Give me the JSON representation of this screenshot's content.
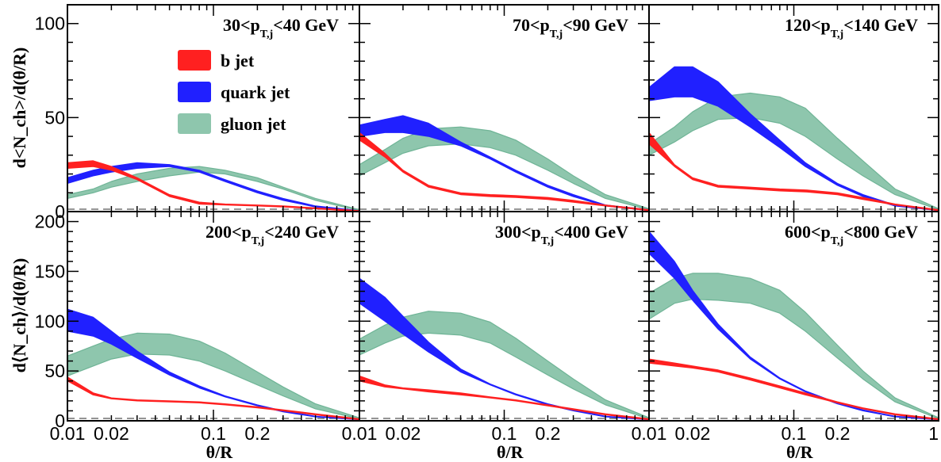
{
  "chart_data": {
    "type": "area",
    "x_scale": "log",
    "xlim": [
      0.01,
      1
    ],
    "x_ticks": [
      "0.01",
      "0.02",
      "0.1",
      "0.2",
      "1"
    ],
    "xlabel": "θ/R",
    "ylabel_top": "d<N_ch>/d(θ/R)",
    "ylabel_bottom": "d⟨N_ch⟩/d(θ/R)",
    "rows": [
      {
        "ylim": [
          0,
          110
        ],
        "yticks": [
          "0",
          "50",
          "100"
        ]
      },
      {
        "ylim": [
          0,
          210
        ],
        "yticks": [
          "0",
          "50",
          "100",
          "150",
          "200"
        ]
      }
    ],
    "legend": {
      "placement": "top-left of first panel",
      "entries": [
        {
          "label": "b jet",
          "color": "#ff2020"
        },
        {
          "label": "quark jet",
          "color": "#2020ff"
        },
        {
          "label": "gluon jet",
          "color": "#8ec6ad"
        }
      ]
    },
    "colors": {
      "b": "#ff2020",
      "quark": "#2020ff",
      "gluon": "#8ec6ad",
      "gluon_line": "#6fb496"
    },
    "panels": [
      {
        "label": {
          "pre": "30<p",
          "sub": "T,j",
          "post": "<40 GeV"
        },
        "x": [
          0.01,
          0.015,
          0.02,
          0.03,
          0.05,
          0.08,
          0.12,
          0.2,
          0.3,
          0.5,
          1
        ],
        "b": {
          "lo": [
            23,
            24,
            22,
            17,
            8,
            4,
            3.5,
            3,
            2.5,
            1.5,
            0
          ],
          "hi": [
            26,
            27,
            24,
            18,
            9,
            5,
            4,
            3.5,
            3,
            2,
            0.5
          ]
        },
        "quark": {
          "lo": [
            15,
            19,
            21,
            23,
            24,
            21,
            16,
            10,
            6,
            2.5,
            0
          ],
          "hi": [
            18,
            22,
            24,
            26,
            25,
            22,
            17,
            11,
            7,
            3,
            0.5
          ]
        },
        "gluon": {
          "lo": [
            7,
            10,
            13,
            16,
            19,
            21,
            20,
            16,
            12,
            6,
            0.5
          ],
          "hi": [
            9,
            12,
            16,
            20,
            23,
            24,
            22,
            18,
            13,
            7,
            1
          ]
        }
      },
      {
        "label": {
          "pre": "70<p",
          "sub": "T,j",
          "post": "<90 GeV"
        },
        "x": [
          0.01,
          0.015,
          0.02,
          0.03,
          0.05,
          0.08,
          0.12,
          0.2,
          0.3,
          0.5,
          1
        ],
        "b": {
          "lo": [
            38,
            29,
            21,
            13,
            9,
            8,
            7.5,
            6.5,
            5,
            3,
            0.5
          ],
          "hi": [
            42,
            31,
            22,
            14,
            10,
            9,
            8.5,
            7.5,
            6,
            3.5,
            1
          ]
        },
        "quark": {
          "lo": [
            40,
            42,
            42,
            40,
            35,
            28,
            21,
            13,
            8,
            3,
            0.5
          ],
          "hi": [
            46,
            49,
            51,
            47,
            37,
            29,
            22,
            14,
            9,
            3.5,
            1
          ]
        },
        "gluon": {
          "lo": [
            19,
            26,
            31,
            35,
            36,
            34,
            30,
            22,
            15,
            7,
            1
          ],
          "hi": [
            25,
            33,
            39,
            44,
            45,
            43,
            38,
            28,
            19,
            9,
            1.5
          ]
        }
      },
      {
        "label": {
          "pre": "120<p",
          "sub": "T,j",
          "post": "<140 GeV"
        },
        "x": [
          0.01,
          0.015,
          0.02,
          0.03,
          0.05,
          0.08,
          0.12,
          0.2,
          0.3,
          0.5,
          1
        ],
        "b": {
          "lo": [
            36,
            24,
            17,
            13,
            12,
            11,
            10.5,
            9,
            6.5,
            3.5,
            0.5
          ],
          "hi": [
            42,
            25,
            18,
            14,
            13,
            12,
            11.5,
            10,
            7.5,
            4,
            1
          ]
        },
        "quark": {
          "lo": [
            59,
            61,
            61,
            56,
            45,
            34,
            24,
            14,
            8,
            3,
            0.5
          ],
          "hi": [
            66,
            77,
            77,
            69,
            52,
            38,
            26,
            15,
            9,
            3.5,
            1
          ]
        },
        "gluon": {
          "lo": [
            30,
            37,
            43,
            49,
            50,
            47,
            40,
            28,
            19,
            9,
            1
          ],
          "hi": [
            36,
            45,
            53,
            61,
            63,
            61,
            55,
            39,
            27,
            12,
            1.5
          ]
        }
      },
      {
        "label": {
          "pre": "200<p",
          "sub": "T,j",
          "post": "<240 GeV"
        },
        "x": [
          0.01,
          0.015,
          0.02,
          0.03,
          0.05,
          0.08,
          0.12,
          0.2,
          0.3,
          0.5,
          1
        ],
        "b": {
          "lo": [
            40,
            26,
            22,
            20,
            19,
            18,
            16,
            13,
            10,
            6,
            1
          ],
          "hi": [
            44,
            28,
            23,
            21,
            20,
            19,
            17,
            14,
            11,
            7,
            2
          ]
        },
        "quark": {
          "lo": [
            90,
            85,
            77,
            63,
            46,
            33,
            24,
            15,
            9,
            4,
            1
          ],
          "hi": [
            112,
            104,
            90,
            70,
            49,
            35,
            25,
            16,
            10,
            4.5,
            1.5
          ]
        },
        "gluon": {
          "lo": [
            45,
            55,
            62,
            67,
            66,
            60,
            50,
            36,
            25,
            12,
            2
          ],
          "hi": [
            65,
            75,
            82,
            88,
            87,
            80,
            68,
            49,
            34,
            17,
            3
          ]
        }
      },
      {
        "label": {
          "pre": "300<p",
          "sub": "T,j",
          "post": "<400 GeV"
        },
        "x": [
          0.01,
          0.015,
          0.02,
          0.03,
          0.05,
          0.08,
          0.12,
          0.2,
          0.3,
          0.5,
          1
        ],
        "b": {
          "lo": [
            40,
            34,
            32,
            29,
            26,
            23,
            20,
            15,
            11,
            6,
            1
          ],
          "hi": [
            45,
            36,
            33,
            31,
            28,
            24,
            21,
            16,
            12,
            7,
            2
          ]
        },
        "quark": {
          "lo": [
            118,
            100,
            87,
            69,
            49,
            36,
            26,
            16,
            10,
            4,
            1
          ],
          "hi": [
            143,
            124,
            105,
            79,
            52,
            37,
            27,
            17,
            11,
            4.5,
            1.5
          ]
        },
        "gluon": {
          "lo": [
            66,
            78,
            85,
            88,
            86,
            78,
            64,
            46,
            32,
            16,
            2
          ],
          "hi": [
            82,
            96,
            104,
            110,
            108,
            99,
            83,
            60,
            42,
            21,
            3
          ]
        }
      },
      {
        "label": {
          "pre": "600<p",
          "sub": "T,j",
          "post": "<800 GeV"
        },
        "x": [
          0.01,
          0.015,
          0.02,
          0.03,
          0.05,
          0.08,
          0.12,
          0.2,
          0.3,
          0.5,
          1
        ],
        "b": {
          "lo": [
            58,
            55,
            53,
            49,
            41,
            33,
            26,
            18,
            12,
            6,
            1
          ],
          "hi": [
            62,
            58,
            55,
            51,
            43,
            35,
            28,
            19,
            13,
            7,
            2
          ]
        },
        "quark": {
          "lo": [
            168,
            143,
            121,
            92,
            62,
            42,
            29,
            17,
            10,
            4,
            1
          ],
          "hi": [
            190,
            160,
            131,
            97,
            64,
            43,
            30,
            18,
            11,
            4.5,
            1.5
          ]
        },
        "gluon": {
          "lo": [
            102,
            118,
            122,
            121,
            118,
            108,
            90,
            63,
            42,
            19,
            2
          ],
          "hi": [
            128,
            143,
            148,
            148,
            143,
            131,
            109,
            76,
            50,
            23,
            3
          ]
        }
      }
    ]
  }
}
